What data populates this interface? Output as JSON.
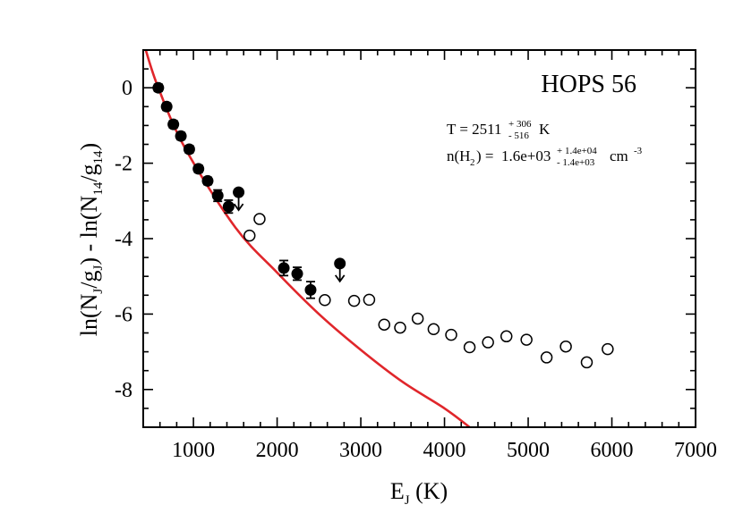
{
  "chart_data": {
    "type": "scatter",
    "title": "HOPS 56",
    "xlabel": {
      "main": "E",
      "sub": "J",
      "rest": " (K)"
    },
    "ylabel": {
      "p1": "ln(N",
      "s1": "J",
      "p2": "/g",
      "s2": "J",
      "p3": ") - ln(N",
      "s3": "14",
      "p4": "/g",
      "s4": "14",
      "p5": ")"
    },
    "xlim": [
      400,
      7000
    ],
    "ylim": [
      -9,
      1
    ],
    "x_ticks": [
      1000,
      2000,
      3000,
      4000,
      5000,
      6000,
      7000
    ],
    "x_tick_labels": [
      "1000",
      "2000",
      "3000",
      "4000",
      "5000",
      "6000",
      "7000"
    ],
    "y_ticks": [
      0,
      -2,
      -4,
      -6,
      -8
    ],
    "y_tick_labels": [
      "0",
      "-2",
      "-4",
      "-6",
      "-8"
    ],
    "annotations": {
      "temp_prefix": "T = 2511",
      "temp_sup": "+ 306",
      "temp_sub": "- 516",
      "temp_unit": "K",
      "dens_prefix": "n(H",
      "dens_sub2": "2",
      "dens_mid": ") =  1.6e+03",
      "dens_sup": "+ 1.4e+04",
      "dens_sub": "- 1.4e+03",
      "dens_unit": "cm",
      "dens_unit_exp": "-3"
    },
    "series": [
      {
        "marker": "filled-circle",
        "color": "#000000",
        "points": [
          {
            "x": 580,
            "y": 0.0,
            "err": 0.05
          },
          {
            "x": 680,
            "y": -0.5,
            "err": 0.05
          },
          {
            "x": 760,
            "y": -0.97,
            "err": 0.05
          },
          {
            "x": 850,
            "y": -1.28,
            "err": 0.05
          },
          {
            "x": 950,
            "y": -1.63,
            "err": 0.05
          },
          {
            "x": 1060,
            "y": -2.15,
            "err": 0.07
          },
          {
            "x": 1170,
            "y": -2.47,
            "err": 0.08
          },
          {
            "x": 1290,
            "y": -2.86,
            "err": 0.15
          },
          {
            "x": 1420,
            "y": -3.15,
            "err": 0.17
          },
          {
            "x": 2080,
            "y": -4.78,
            "err": 0.2
          },
          {
            "x": 2240,
            "y": -4.93,
            "err": 0.17
          },
          {
            "x": 2400,
            "y": -5.36,
            "err": 0.22
          }
        ]
      },
      {
        "marker": "upper-limit",
        "color": "#000000",
        "points": [
          {
            "x": 1540,
            "y": -2.77
          },
          {
            "x": 2750,
            "y": -4.66
          }
        ]
      },
      {
        "marker": "open-circle",
        "color": "#000000",
        "points": [
          {
            "x": 1670,
            "y": -3.92
          },
          {
            "x": 1790,
            "y": -3.48
          },
          {
            "x": 2570,
            "y": -5.63
          },
          {
            "x": 2920,
            "y": -5.65
          },
          {
            "x": 3100,
            "y": -5.62
          },
          {
            "x": 3280,
            "y": -6.28
          },
          {
            "x": 3470,
            "y": -6.36
          },
          {
            "x": 3680,
            "y": -6.12
          },
          {
            "x": 3870,
            "y": -6.4
          },
          {
            "x": 4080,
            "y": -6.55
          },
          {
            "x": 4300,
            "y": -6.88
          },
          {
            "x": 4520,
            "y": -6.75
          },
          {
            "x": 4740,
            "y": -6.59
          },
          {
            "x": 4980,
            "y": -6.68
          },
          {
            "x": 5220,
            "y": -7.15
          },
          {
            "x": 5450,
            "y": -6.86
          },
          {
            "x": 5700,
            "y": -7.28
          },
          {
            "x": 5950,
            "y": -6.93
          }
        ]
      },
      {
        "marker": "line",
        "color": "#e0262b",
        "points": [
          {
            "x": 430,
            "y": 1.0
          },
          {
            "x": 580,
            "y": 0.0
          },
          {
            "x": 900,
            "y": -1.6
          },
          {
            "x": 1500,
            "y": -3.7
          },
          {
            "x": 2000,
            "y": -4.9
          },
          {
            "x": 2500,
            "y": -6.0
          },
          {
            "x": 3000,
            "y": -6.95
          },
          {
            "x": 3500,
            "y": -7.8
          },
          {
            "x": 4000,
            "y": -8.5
          },
          {
            "x": 4300,
            "y": -9.0
          }
        ]
      }
    ]
  }
}
